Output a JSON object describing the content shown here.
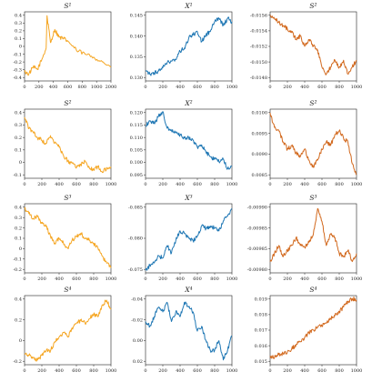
{
  "figure": {
    "background": "#ffffff"
  },
  "chart_data": [
    {
      "type": "line",
      "title": "S¹",
      "xlabel": "",
      "ylabel": "",
      "xlim": [
        0,
        2000
      ],
      "ylim": [
        -0.45,
        0.45
      ],
      "xticks": [
        "0",
        "200",
        "400",
        "600",
        "800",
        "1000",
        "2000"
      ],
      "yticks": [
        "-0.4",
        "-0.3",
        "-0.2",
        "-0.1",
        "0",
        "0.1",
        "0.2",
        "0.3",
        "0.4"
      ],
      "color": "#f5a623",
      "series": [
        {
          "x": [
            0,
            100,
            200,
            300,
            400,
            500,
            520,
            600,
            700,
            800,
            900,
            1000,
            1200,
            1400,
            1600,
            1800,
            2000
          ],
          "values": [
            -0.33,
            -0.36,
            -0.27,
            -0.3,
            -0.17,
            -0.02,
            0.4,
            0.05,
            0.22,
            0.12,
            0.1,
            0.07,
            -0.05,
            -0.1,
            -0.14,
            -0.2,
            -0.27
          ]
        }
      ]
    },
    {
      "type": "line",
      "title": "X¹",
      "xlabel": "",
      "ylabel": "",
      "xlim": [
        0,
        1000
      ],
      "ylim": [
        0.128,
        0.149
      ],
      "xticks": [
        "0",
        "200",
        "400",
        "600",
        "800",
        "1000"
      ],
      "yticks": [
        "0.130",
        "0.135",
        "0.140",
        "0.145"
      ],
      "color": "#1f77b4",
      "series": [
        {
          "x": [
            0,
            50,
            100,
            150,
            200,
            250,
            300,
            350,
            400,
            450,
            500,
            550,
            600,
            650,
            700,
            750,
            800,
            850,
            900,
            950,
            1000
          ],
          "values": [
            0.131,
            0.13,
            0.1305,
            0.131,
            0.132,
            0.1335,
            0.134,
            0.1345,
            0.137,
            0.138,
            0.141,
            0.142,
            0.143,
            0.14,
            0.142,
            0.143,
            0.146,
            0.147,
            0.145,
            0.147,
            0.146
          ]
        }
      ]
    },
    {
      "type": "line",
      "title": "S²",
      "xlabel": "",
      "ylabel": "",
      "xlim": [
        0,
        1000
      ],
      "ylim": [
        -0.0157,
        -0.0147
      ],
      "xticks": [
        "0",
        "200",
        "400",
        "600",
        "800",
        "1000"
      ],
      "yticks": [
        "-0.0148",
        "-0.0150",
        "-0.0152",
        "-0.0154",
        "-0.0156"
      ],
      "color": "#d2691e",
      "series": [
        {
          "x": [
            0,
            50,
            100,
            150,
            200,
            250,
            300,
            350,
            400,
            450,
            500,
            550,
            600,
            650,
            700,
            750,
            800,
            850,
            900,
            950,
            1000
          ],
          "values": [
            -0.01475,
            -0.0148,
            -0.01485,
            -0.0149,
            -0.01495,
            -0.015,
            -0.0151,
            -0.01505,
            -0.0152,
            -0.0151,
            -0.0152,
            -0.01525,
            -0.0155,
            -0.0156,
            -0.0155,
            -0.0154,
            -0.0155,
            -0.0154,
            -0.0156,
            -0.0155,
            -0.0154
          ]
        }
      ]
    },
    {
      "type": "line",
      "title": "S²",
      "xlabel": "",
      "ylabel": "",
      "xlim": [
        0,
        1000
      ],
      "ylim": [
        -0.15,
        0.45
      ],
      "xticks": [
        "0",
        "200",
        "400",
        "600",
        "800",
        "1000"
      ],
      "yticks": [
        "-0.1",
        "0",
        "0.1",
        "0.2",
        "0.3",
        "0.4"
      ],
      "color": "#f5a623",
      "series": [
        {
          "x": [
            0,
            50,
            100,
            150,
            200,
            250,
            300,
            350,
            400,
            450,
            500,
            550,
            600,
            650,
            700,
            750,
            800,
            850,
            900,
            950,
            1000
          ],
          "values": [
            0.38,
            0.28,
            0.25,
            0.2,
            0.18,
            0.15,
            0.22,
            0.16,
            0.12,
            0.05,
            0.0,
            -0.02,
            -0.06,
            -0.03,
            0.0,
            -0.06,
            -0.08,
            -0.05,
            -0.1,
            -0.06,
            -0.05
          ]
        }
      ]
    },
    {
      "type": "line",
      "title": "X²",
      "xlabel": "",
      "ylabel": "",
      "xlim": [
        0,
        1000
      ],
      "ylim": [
        0.092,
        0.121
      ],
      "xticks": [
        "0",
        "200",
        "400",
        "600",
        "800",
        "1000"
      ],
      "yticks": [
        "0.095",
        "0.100",
        "0.105",
        "0.110",
        "0.115",
        "0.120"
      ],
      "color": "#1f77b4",
      "series": [
        {
          "x": [
            0,
            50,
            100,
            150,
            200,
            250,
            300,
            350,
            400,
            450,
            500,
            550,
            600,
            650,
            700,
            750,
            800,
            850,
            900,
            950,
            1000
          ],
          "values": [
            0.114,
            0.116,
            0.115,
            0.118,
            0.12,
            0.113,
            0.112,
            0.111,
            0.11,
            0.109,
            0.109,
            0.108,
            0.105,
            0.106,
            0.103,
            0.101,
            0.1,
            0.099,
            0.1,
            0.096,
            0.097
          ]
        }
      ]
    },
    {
      "type": "line",
      "title": "S²",
      "xlabel": "",
      "ylabel": "",
      "xlim": [
        0,
        1000
      ],
      "ylim": [
        0.0083,
        0.0102
      ],
      "xticks": [
        "0",
        "200",
        "400",
        "600",
        "800",
        "1000"
      ],
      "yticks": [
        "0.0085",
        "0.0090",
        "0.0095",
        "0.0100"
      ],
      "color": "#d2691e",
      "series": [
        {
          "x": [
            0,
            50,
            100,
            150,
            200,
            250,
            300,
            350,
            400,
            450,
            500,
            550,
            600,
            650,
            700,
            750,
            800,
            850,
            900,
            950,
            1000
          ],
          "values": [
            0.0101,
            0.0097,
            0.0096,
            0.0093,
            0.0091,
            0.0092,
            0.009,
            0.0089,
            0.0091,
            0.0088,
            0.0086,
            0.0088,
            0.0091,
            0.0093,
            0.0092,
            0.0095,
            0.0096,
            0.0094,
            0.0093,
            0.0087,
            0.0084
          ]
        }
      ]
    },
    {
      "type": "line",
      "title": "S³",
      "xlabel": "",
      "ylabel": "",
      "xlim": [
        0,
        1000
      ],
      "ylim": [
        -0.25,
        0.45
      ],
      "xticks": [
        "0",
        "200",
        "400",
        "600",
        "800",
        "1000"
      ],
      "yticks": [
        "-0.2",
        "-0.1",
        "0",
        "0.1",
        "0.2",
        "0.3",
        "0.4"
      ],
      "color": "#f5a623",
      "series": [
        {
          "x": [
            0,
            50,
            100,
            150,
            200,
            250,
            300,
            350,
            400,
            450,
            500,
            550,
            600,
            650,
            700,
            750,
            800,
            850,
            900,
            950,
            1000
          ],
          "values": [
            0.4,
            0.35,
            0.3,
            0.32,
            0.25,
            0.22,
            0.12,
            0.05,
            0.1,
            0.05,
            0.0,
            0.08,
            0.12,
            0.15,
            0.1,
            0.08,
            0.05,
            0.0,
            -0.08,
            -0.15,
            -0.2
          ]
        }
      ]
    },
    {
      "type": "line",
      "title": "X³",
      "xlabel": "",
      "ylabel": "",
      "xlim": [
        0,
        1000
      ],
      "ylim": [
        -0.0865,
        -0.0725
      ],
      "xticks": [
        "0",
        "200",
        "400",
        "600",
        "800",
        "1000"
      ],
      "yticks": [
        "-0.075",
        "-0.080",
        "-0.085"
      ],
      "color": "#1f77b4",
      "series": [
        {
          "x": [
            0,
            50,
            100,
            150,
            200,
            250,
            300,
            350,
            400,
            450,
            500,
            550,
            600,
            650,
            700,
            750,
            800,
            850,
            900,
            950,
            1000
          ],
          "values": [
            -0.086,
            -0.085,
            -0.0845,
            -0.083,
            -0.0835,
            -0.081,
            -0.0825,
            -0.08,
            -0.078,
            -0.0785,
            -0.0795,
            -0.08,
            -0.079,
            -0.077,
            -0.0775,
            -0.077,
            -0.0775,
            -0.078,
            -0.076,
            -0.075,
            -0.0735
          ]
        }
      ]
    },
    {
      "type": "line",
      "title": "S³",
      "xlabel": "",
      "ylabel": "",
      "xlim": [
        0,
        1000
      ],
      "ylim": [
        -0.009862,
        -0.009819
      ],
      "xticks": [
        "0",
        "200",
        "400",
        "600",
        "800",
        "1000"
      ],
      "yticks": [
        "-0.00980",
        "-0.00985",
        "-0.00985",
        "-0.00990"
      ],
      "color": "#d2691e",
      "series": [
        {
          "x": [
            0,
            50,
            100,
            150,
            200,
            250,
            300,
            350,
            400,
            450,
            500,
            550,
            600,
            650,
            700,
            750,
            800,
            850,
            900,
            950,
            1000
          ],
          "values": [
            -0.009855,
            -0.00985,
            -0.009845,
            -0.009852,
            -0.009848,
            -0.009845,
            -0.00984,
            -0.009845,
            -0.009846,
            -0.009843,
            -0.009838,
            -0.009822,
            -0.00983,
            -0.009845,
            -0.009838,
            -0.00984,
            -0.00985,
            -0.009852,
            -0.009848,
            -0.009855,
            -0.00985
          ]
        }
      ]
    },
    {
      "type": "line",
      "title": "S⁴",
      "xlabel": "",
      "ylabel": "",
      "xlim": [
        0,
        1000
      ],
      "ylim": [
        -0.3,
        0.45
      ],
      "xticks": [
        "0",
        "200",
        "400",
        "600",
        "800",
        "1000"
      ],
      "yticks": [
        "-0.2",
        "0",
        "0.2",
        "0.4"
      ],
      "color": "#f5a623",
      "series": [
        {
          "x": [
            0,
            50,
            100,
            150,
            200,
            250,
            300,
            350,
            400,
            450,
            500,
            550,
            600,
            650,
            700,
            750,
            800,
            850,
            900,
            950,
            1000
          ],
          "values": [
            -0.18,
            -0.2,
            -0.22,
            -0.25,
            -0.2,
            -0.15,
            -0.15,
            -0.05,
            0.0,
            0.05,
            0.0,
            0.1,
            0.15,
            0.18,
            0.15,
            0.2,
            0.25,
            0.22,
            0.35,
            0.4,
            0.3
          ]
        }
      ]
    },
    {
      "type": "line",
      "title": "X⁴",
      "xlabel": "",
      "ylabel": "",
      "xlim": [
        0,
        1000
      ],
      "ylim": [
        -0.045,
        0.027
      ],
      "xticks": [
        "0",
        "200",
        "400",
        "600",
        "800",
        "1000"
      ],
      "yticks": [
        "0.02",
        "0.00",
        "-0.02",
        "-0.04"
      ],
      "color": "#1f77b4",
      "series": [
        {
          "x": [
            0,
            50,
            100,
            150,
            200,
            250,
            300,
            350,
            400,
            450,
            500,
            550,
            600,
            650,
            700,
            750,
            800,
            850,
            900,
            950,
            1000
          ],
          "values": [
            0.0,
            -0.005,
            0.005,
            0.015,
            0.01,
            0.02,
            0.0,
            0.01,
            0.005,
            0.02,
            0.015,
            0.01,
            -0.01,
            -0.005,
            -0.02,
            -0.03,
            -0.03,
            -0.02,
            -0.04,
            -0.03,
            -0.015
          ]
        }
      ]
    },
    {
      "type": "line",
      "title": "S⁴",
      "xlabel": "",
      "ylabel": "",
      "xlim": [
        0,
        1000
      ],
      "ylim": [
        0.0144,
        0.0192
      ],
      "xticks": [
        "0",
        "200",
        "400",
        "600",
        "800",
        "1000"
      ],
      "yticks": [
        "0.015",
        "0.016",
        "0.017",
        "0.018",
        "0.019"
      ],
      "color": "#d2691e",
      "series": [
        {
          "x": [
            0,
            50,
            100,
            150,
            200,
            250,
            300,
            350,
            400,
            450,
            500,
            550,
            600,
            650,
            700,
            750,
            800,
            850,
            900,
            950,
            1000
          ],
          "values": [
            0.015,
            0.0149,
            0.0151,
            0.0152,
            0.0153,
            0.0155,
            0.0158,
            0.016,
            0.0163,
            0.0166,
            0.0168,
            0.017,
            0.0171,
            0.0173,
            0.0176,
            0.0178,
            0.0181,
            0.0184,
            0.0188,
            0.019,
            0.0189
          ]
        }
      ]
    }
  ]
}
